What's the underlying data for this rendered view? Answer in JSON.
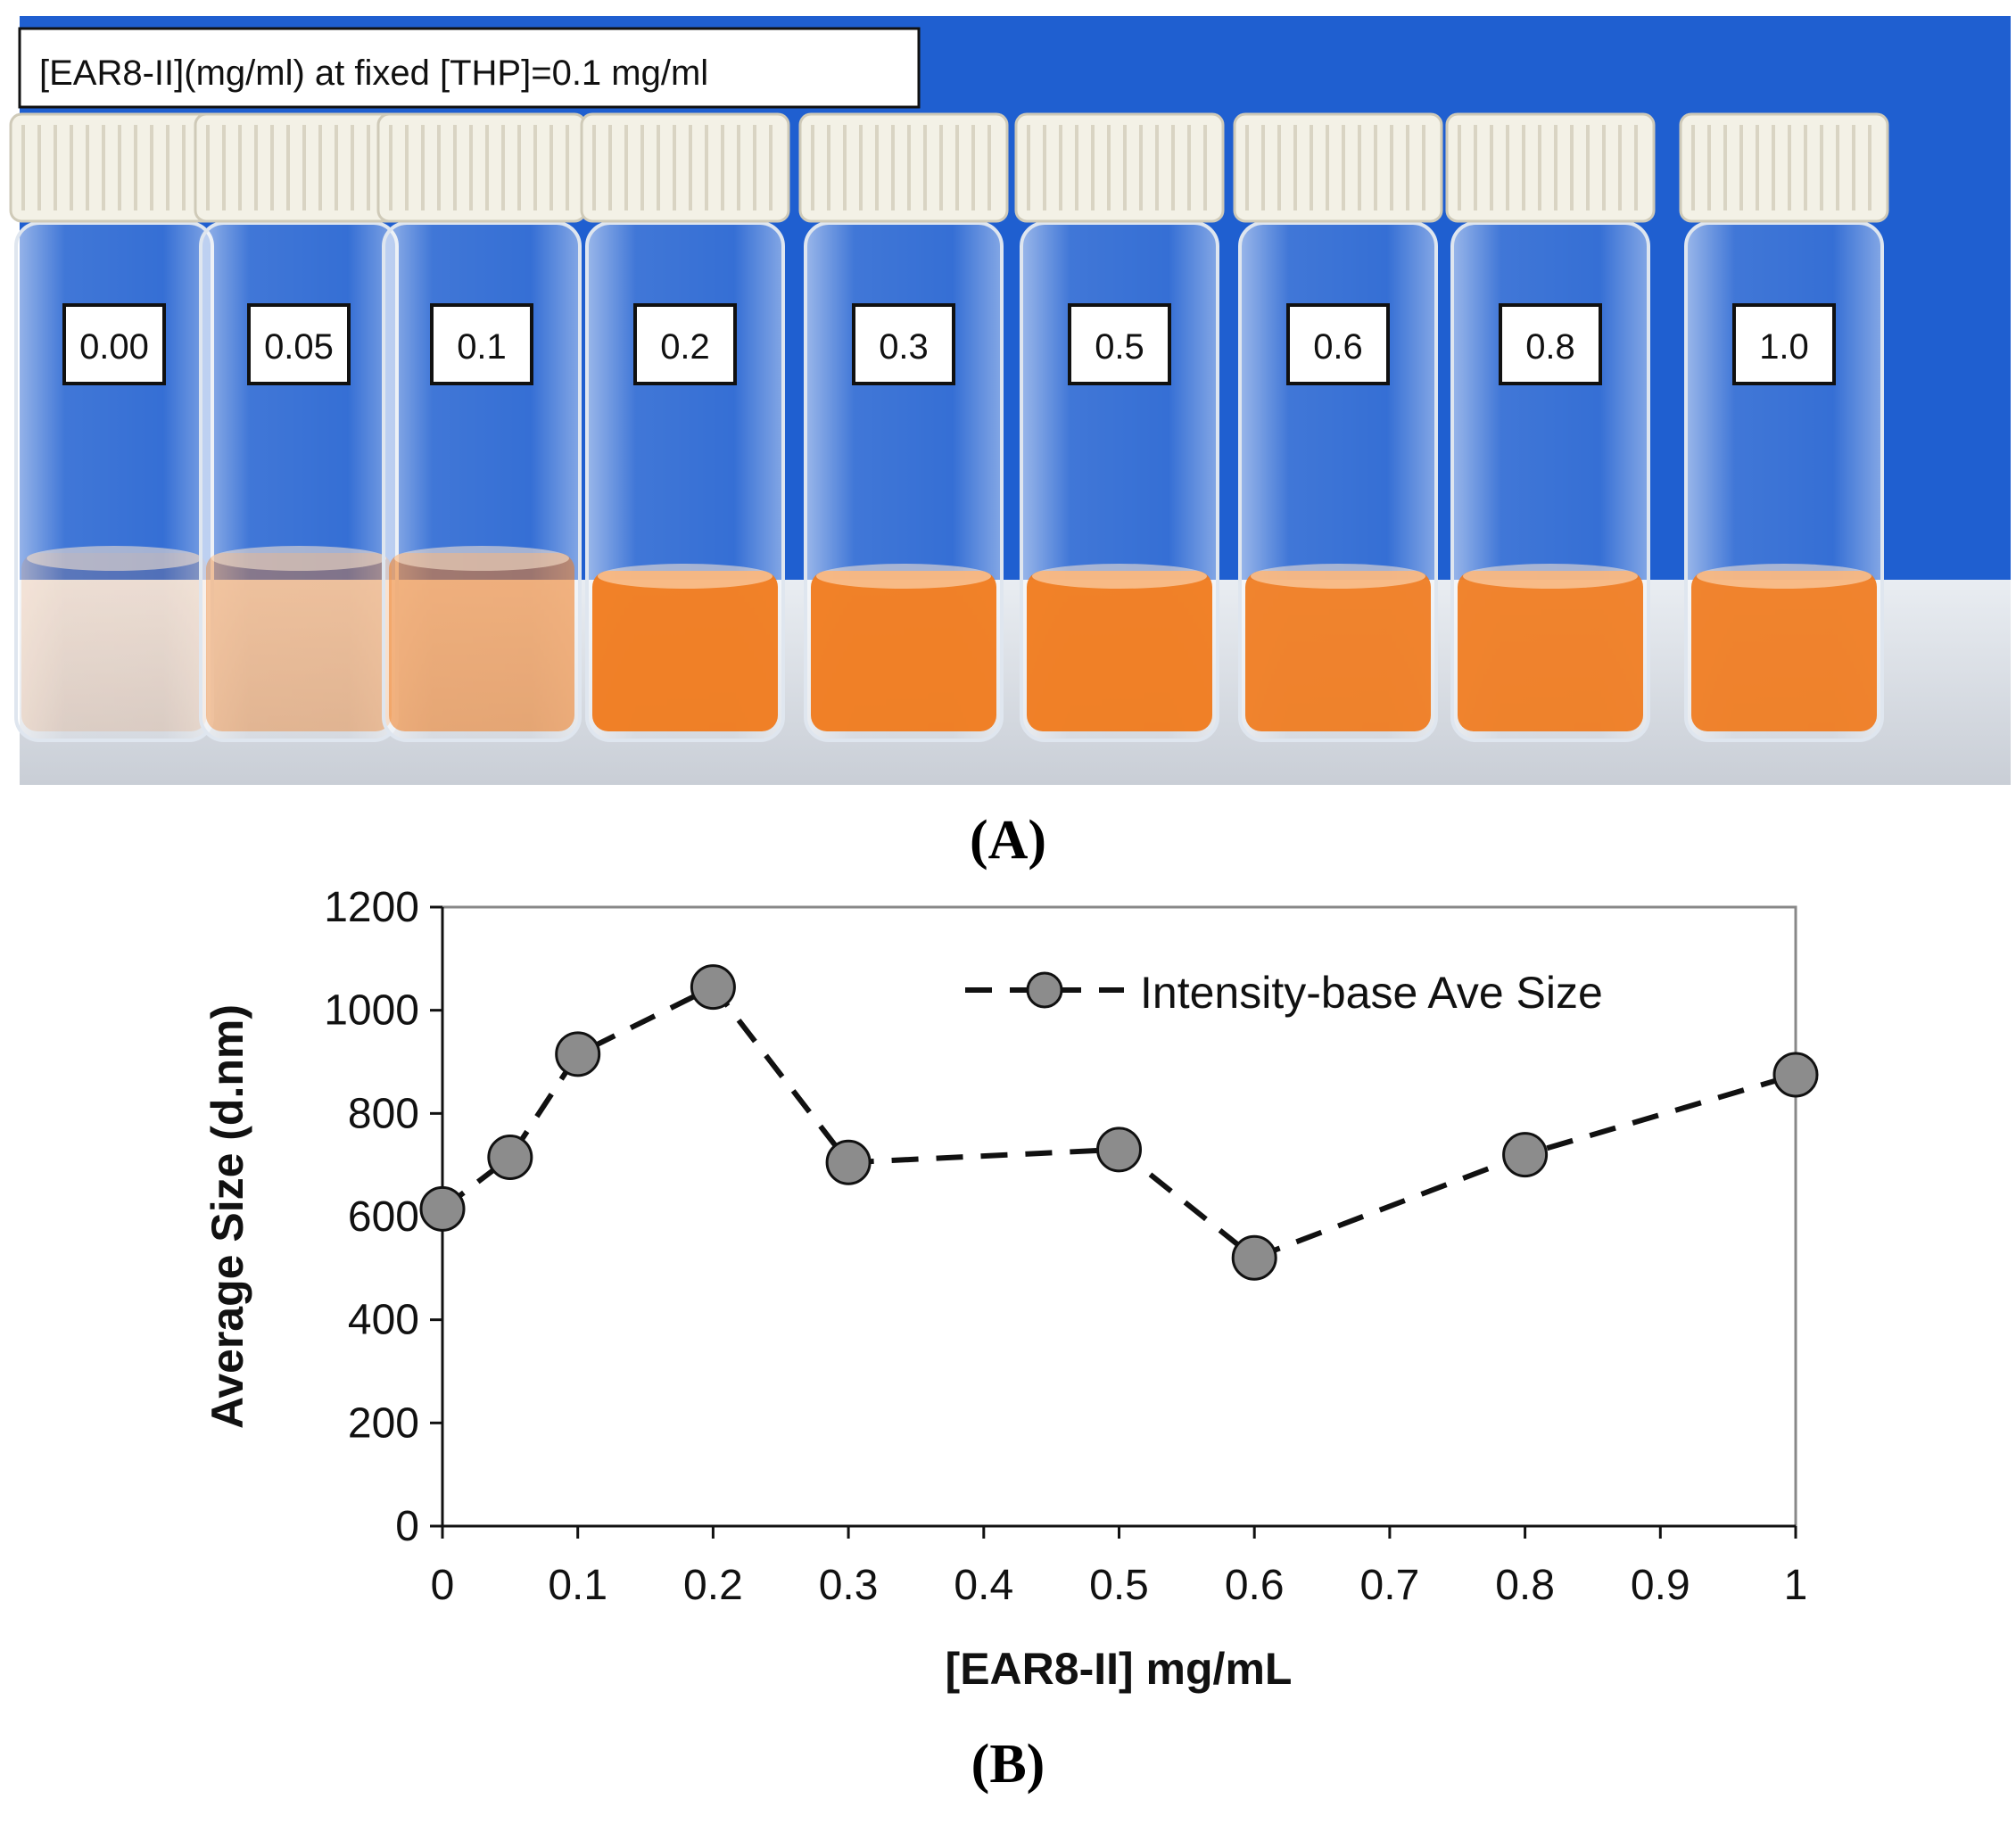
{
  "panel_a": {
    "header": "[EAR8-II](mg/ml) at fixed [THP]=0.1 mg/ml",
    "vial_labels": [
      "0.00",
      "0.05",
      "0.1",
      "0.2",
      "0.3",
      "0.5",
      "0.6",
      "0.8",
      "1.0"
    ],
    "vial_color_intensity": [
      0.15,
      0.4,
      0.55,
      0.95,
      0.95,
      0.95,
      0.92,
      0.92,
      0.92
    ],
    "caption_letter": "A",
    "colors": {
      "background": "#1f5fd0",
      "liquid": "#f07a1c",
      "cap": "#f3f1e6"
    }
  },
  "panel_b": {
    "caption_letter": "B"
  },
  "chart_data": {
    "type": "line",
    "style": "dashed line with circle markers",
    "series": [
      {
        "name": "Intensity-base Ave Size",
        "x": [
          0,
          0.05,
          0.1,
          0.2,
          0.3,
          0.5,
          0.6,
          0.8,
          1
        ],
        "values": [
          615,
          715,
          915,
          1045,
          705,
          730,
          520,
          720,
          875
        ]
      }
    ],
    "xlabel": "[EAR8-II] mg/mL",
    "ylabel": "Average  Size (d.nm)",
    "xlim": [
      0,
      1
    ],
    "ylim": [
      0,
      1200
    ],
    "x_ticks": [
      "0",
      "0.1",
      "0.2",
      "0.3",
      "0.4",
      "0.5",
      "0.6",
      "0.7",
      "0.8",
      "0.9",
      "1"
    ],
    "y_ticks": [
      "0",
      "200",
      "400",
      "600",
      "800",
      "1000",
      "1200"
    ],
    "legend_position": "top-right",
    "grid": false,
    "colors": {
      "marker_fill": "#8c8c8c",
      "line": "#111111"
    }
  }
}
